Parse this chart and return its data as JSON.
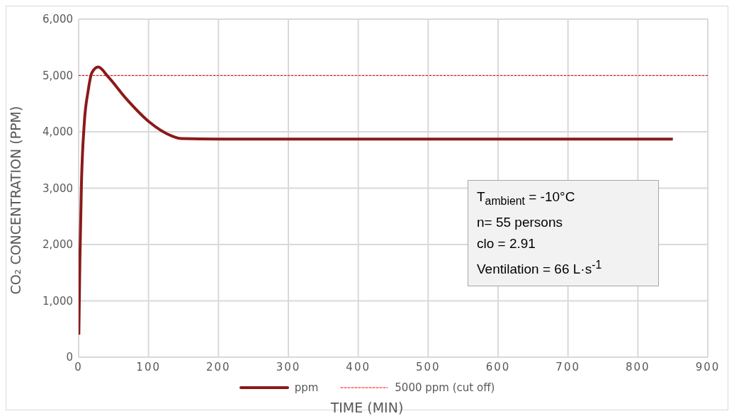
{
  "chart_data": {
    "type": "line",
    "xlabel": "TIME (MIN)",
    "ylabel": "CO₂ CONCENTRATION (PPM)",
    "xlim": [
      0,
      900
    ],
    "xticks": [
      0,
      100,
      200,
      300,
      400,
      500,
      600,
      700,
      800,
      900
    ],
    "ylim": [
      0,
      6000
    ],
    "yticks": [
      {
        "value": 0,
        "label": "0"
      },
      {
        "value": 1000,
        "label": "1,000"
      },
      {
        "value": 2000,
        "label": "2,000"
      },
      {
        "value": 3000,
        "label": "3,000"
      },
      {
        "value": 4000,
        "label": "4,000"
      },
      {
        "value": 5000,
        "label": "5,000"
      },
      {
        "value": 6000,
        "label": "6,000"
      }
    ],
    "grid": true,
    "legend": "bottom",
    "marker": "none",
    "line_style": "solid",
    "series": [
      {
        "name": "ppm",
        "color": "#8b1a1a",
        "x": [
          0.3,
          1.8,
          4,
          8,
          13.5,
          19,
          28,
          42,
          68.6,
          100.6,
          132.7,
          147,
          200,
          300,
          400,
          500,
          600,
          700,
          800,
          850
        ],
        "values": [
          400,
          1730,
          3070,
          4140,
          4720,
          5050,
          5150,
          4980,
          4580,
          4180,
          3930,
          3880,
          3870,
          3870,
          3870,
          3870,
          3870,
          3870,
          3870,
          3870
        ]
      }
    ],
    "ref_lines": [
      {
        "axis": "y",
        "value": 5000,
        "label": "5000 ppm (cut off)",
        "color": "#ff0000",
        "line_style": "dashed"
      }
    ],
    "annotations": [
      "T$_{ambient}$ = -10°C",
      "n= 55 persons",
      "clo = 2.91",
      "Ventilation = 66 L·s$^{-1}$"
    ]
  }
}
